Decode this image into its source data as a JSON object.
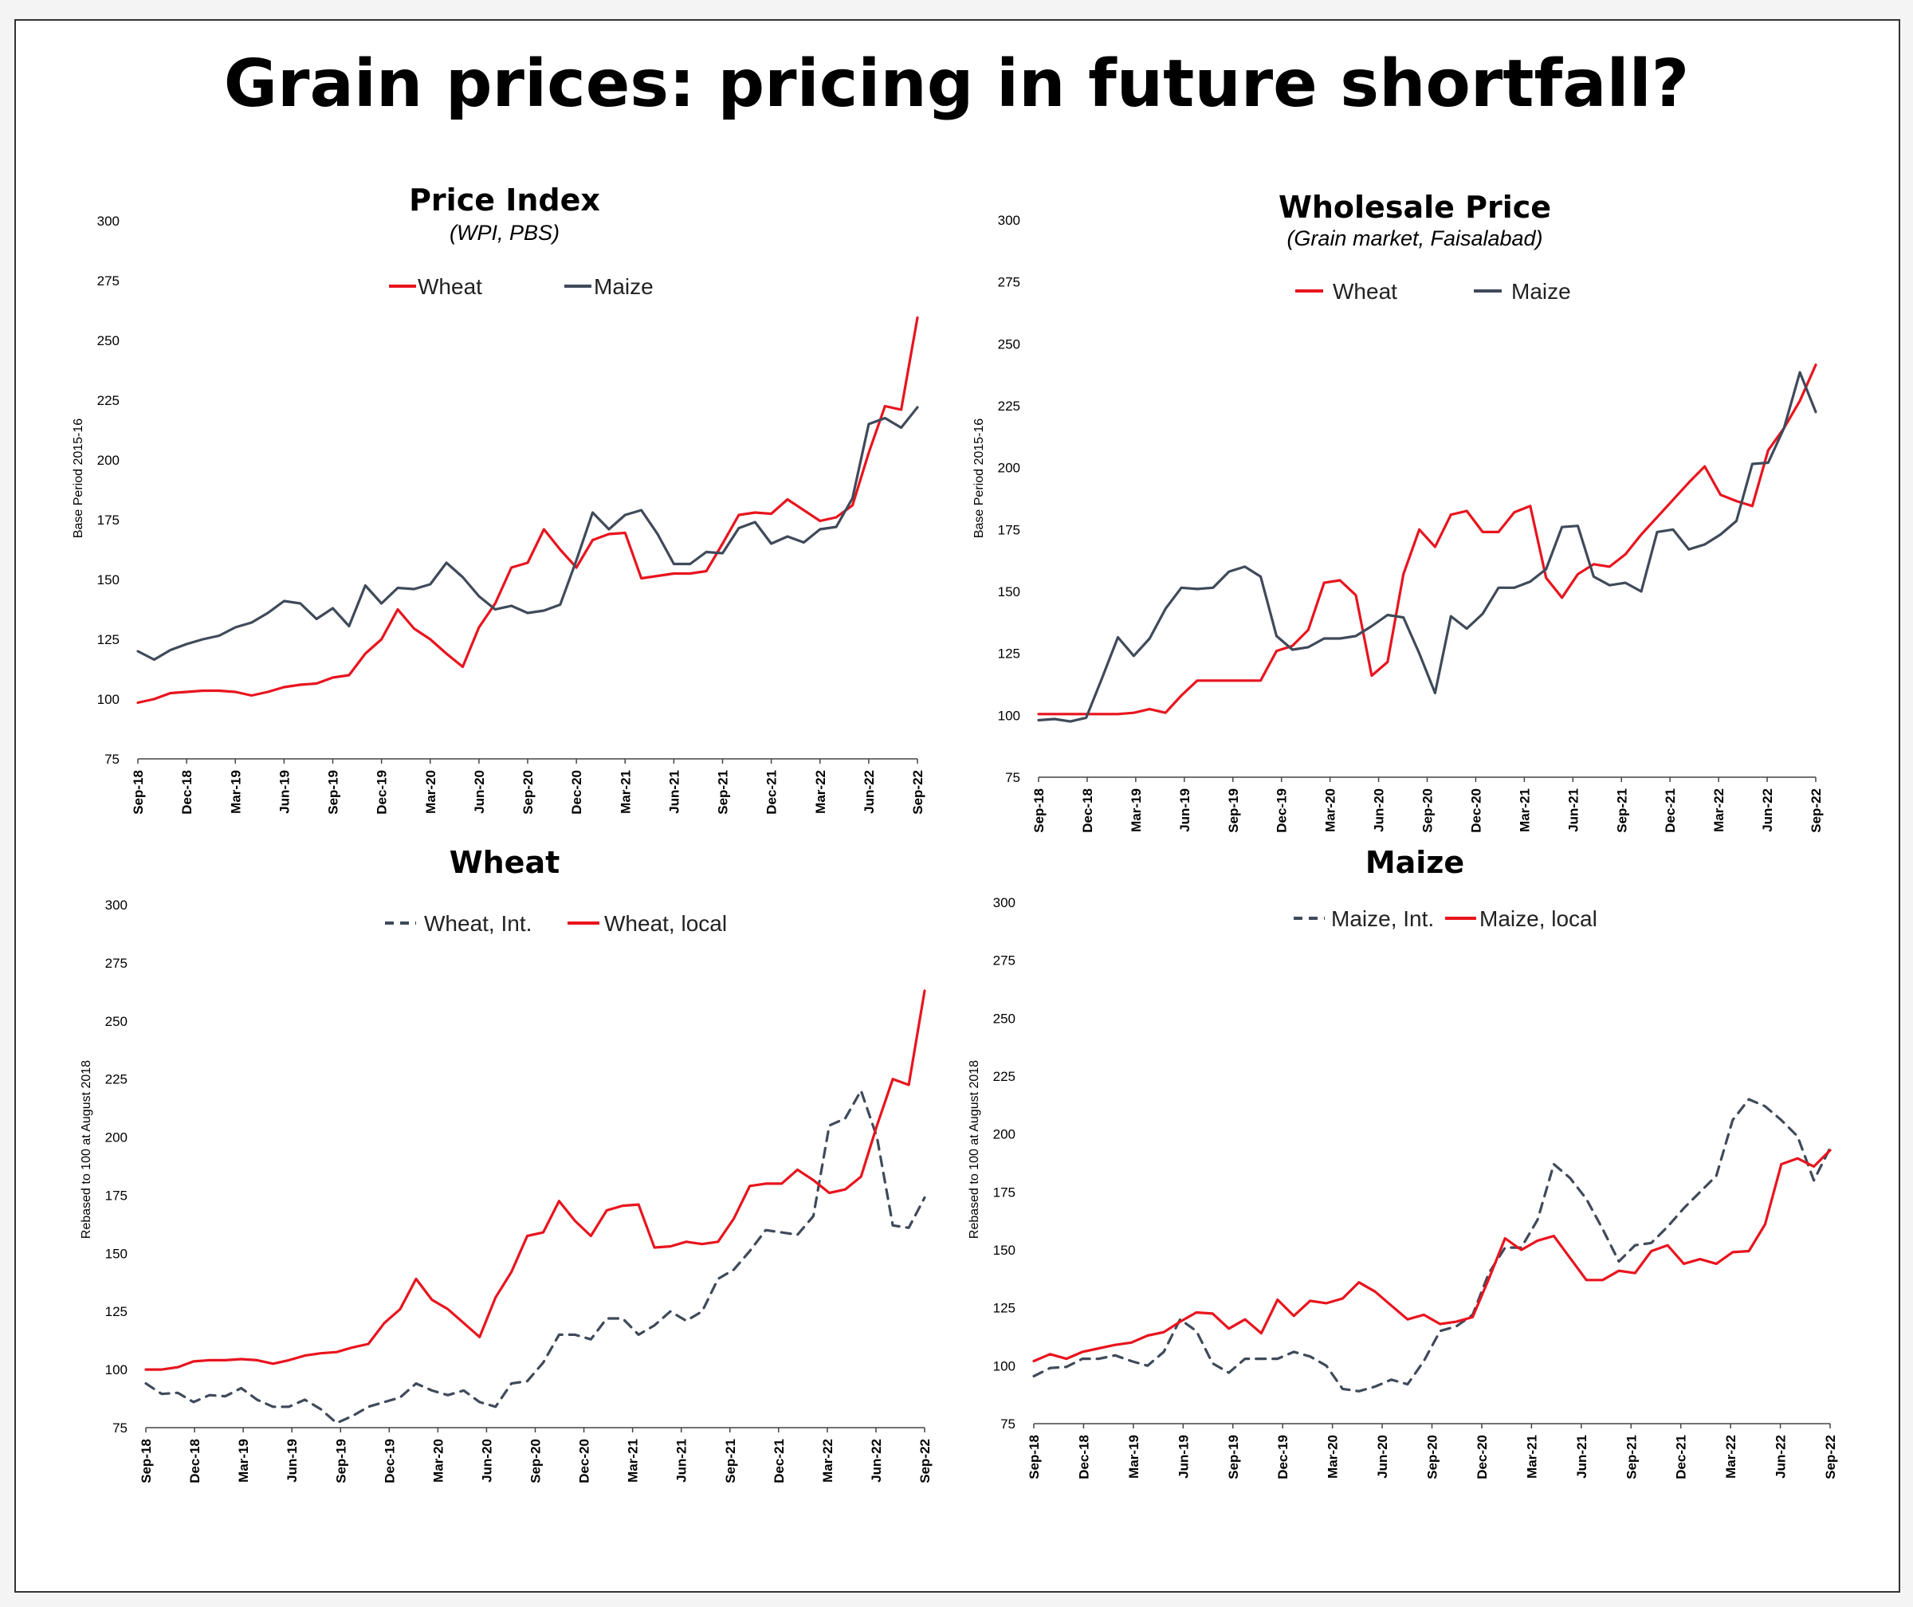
{
  "title": "Grain prices: pricing in future shortfall?",
  "colors": {
    "red": "#e8141e",
    "slate": "#3f4a5a"
  },
  "x_tick_labels": [
    "Sep-18",
    "Dec-18",
    "Mar-19",
    "Jun-19",
    "Sep-19",
    "Dec-19",
    "Mar-20",
    "Jun-20",
    "Sep-20",
    "Dec-20",
    "Mar-21",
    "Jun-21",
    "Sep-21",
    "Dec-21",
    "Mar-22",
    "Jun-22",
    "Sep-22"
  ],
  "chart_data": [
    {
      "id": "tl",
      "type": "line",
      "title": "Price Index",
      "subtitle": "(WPI, PBS)",
      "ylabel": "Base Period 2015-16",
      "ylim": [
        75,
        300
      ],
      "yticks": [
        75,
        100,
        125,
        150,
        175,
        200,
        225,
        250,
        275,
        300
      ],
      "series": [
        {
          "name": "Wheat",
          "color": "#e8141e",
          "dash": false,
          "values": [
            98.5,
            100,
            102.5,
            103,
            103.5,
            103.5,
            103,
            101.5,
            103,
            105,
            106,
            106.5,
            109,
            110,
            119,
            125,
            137.5,
            129.5,
            125,
            119,
            113.5,
            130,
            140,
            155,
            157,
            171,
            162.5,
            155,
            166.5,
            169,
            169.5,
            150.5,
            151.5,
            152.5,
            152.5,
            153.5,
            165,
            177,
            178,
            177.5,
            183.5,
            179,
            174.5,
            176,
            181,
            203,
            222.5,
            221,
            259.5
          ]
        },
        {
          "name": "Maize",
          "color": "#3f4a5a",
          "dash": false,
          "values": [
            120,
            116.5,
            120.5,
            123,
            125,
            126.5,
            130,
            132,
            136,
            141,
            140,
            133.5,
            138,
            130.5,
            147.5,
            140,
            146.5,
            146,
            148,
            157,
            151,
            143,
            137.5,
            139,
            136,
            137,
            139.5,
            158,
            178,
            171,
            177,
            179,
            169,
            156.5,
            156.5,
            161.5,
            161,
            171.5,
            174,
            165,
            168,
            165.5,
            171,
            172,
            184,
            215,
            217.5,
            213.5,
            222
          ]
        }
      ]
    },
    {
      "id": "tr",
      "type": "line",
      "title": "Wholesale Price",
      "subtitle": "(Grain market, Faisalabad)",
      "ylabel": "Base Period  2015-16",
      "ylim": [
        75,
        300
      ],
      "yticks": [
        75,
        100,
        125,
        150,
        175,
        200,
        225,
        250,
        275,
        300
      ],
      "series": [
        {
          "name": "Wheat",
          "color": "#e8141e",
          "dash": false,
          "values": [
            100.5,
            100.5,
            100.5,
            100.5,
            100.5,
            100.5,
            101,
            102.5,
            101,
            108,
            114,
            114,
            114,
            114,
            114,
            126,
            128,
            134.5,
            153.5,
            154.5,
            148.5,
            116,
            121.5,
            157,
            175,
            168,
            181,
            182.5,
            174,
            174,
            182,
            184.5,
            155.5,
            147.5,
            157,
            161,
            160,
            165,
            173,
            180,
            187,
            194,
            200.5,
            189,
            186.5,
            184.5,
            207,
            216,
            227,
            241.5
          ]
        },
        {
          "name": "Maize",
          "color": "#3f4a5a",
          "dash": false,
          "values": [
            98,
            98.5,
            97.5,
            99,
            115,
            131.5,
            124,
            131,
            143,
            151.5,
            151,
            151.5,
            158,
            160,
            156,
            132,
            126.5,
            127.5,
            131,
            131,
            132,
            136,
            140.5,
            139.5,
            125,
            109,
            140,
            135,
            141,
            151.5,
            151.5,
            154,
            159,
            176,
            176.5,
            156,
            152.5,
            153.5,
            150,
            174,
            175,
            167,
            169,
            173,
            178.5,
            201.5,
            202,
            216,
            238.5,
            222.5
          ]
        }
      ]
    },
    {
      "id": "bl",
      "type": "line",
      "title": "Wheat",
      "subtitle": "",
      "ylabel": "Rebased to 100 at August 2018",
      "ylim": [
        75,
        300
      ],
      "yticks": [
        75,
        100,
        125,
        150,
        175,
        200,
        225,
        250,
        275,
        300
      ],
      "series": [
        {
          "name": "Wheat, Int.",
          "color": "#3f4a5a",
          "dash": true,
          "values": [
            94,
            89.5,
            90,
            86,
            89,
            88.5,
            92,
            87,
            84,
            84,
            87,
            83,
            77,
            80,
            84,
            86,
            88,
            94,
            91,
            89,
            91,
            86,
            84,
            94,
            95,
            103,
            115,
            115,
            113,
            122,
            122,
            115,
            119,
            125,
            121,
            125,
            139,
            143,
            151,
            160,
            159,
            158,
            166,
            205,
            208,
            220,
            200,
            162,
            161,
            174
          ]
        },
        {
          "name": "Wheat, local",
          "color": "#e8141e",
          "dash": false,
          "values": [
            100,
            100,
            101,
            103.5,
            104,
            104,
            104.5,
            104,
            102.5,
            104,
            106,
            107,
            107.5,
            109.5,
            111,
            120,
            126,
            139,
            130,
            126,
            120,
            114,
            131,
            142,
            157.5,
            159,
            172.5,
            164,
            157.5,
            168.5,
            170.5,
            171,
            152.5,
            153,
            155,
            154,
            155,
            165,
            179,
            180,
            180,
            186,
            181.5,
            176,
            177.5,
            183,
            205,
            225,
            222.5,
            263
          ]
        }
      ]
    },
    {
      "id": "br",
      "type": "line",
      "title": "Maize",
      "subtitle": "",
      "ylabel": "Rebased to 100 at August 2018",
      "ylim": [
        75,
        300
      ],
      "yticks": [
        75,
        100,
        125,
        150,
        175,
        200,
        225,
        250,
        275,
        300
      ],
      "series": [
        {
          "name": "Maize, Int.",
          "color": "#3f4a5a",
          "dash": true,
          "values": [
            95.5,
            99,
            99.5,
            103,
            103,
            104.5,
            102,
            100,
            106,
            120,
            115,
            101,
            97,
            103,
            103,
            103,
            106,
            104,
            100,
            90,
            89,
            91,
            94,
            92,
            102,
            115,
            117,
            122,
            140,
            151,
            151,
            163,
            187,
            181,
            172,
            159,
            145,
            152,
            153,
            160,
            168,
            175,
            182,
            206,
            215,
            212,
            206,
            199,
            180,
            194
          ]
        },
        {
          "name": "Maize, local",
          "color": "#e8141e",
          "dash": false,
          "values": [
            102,
            105,
            103,
            106,
            107.5,
            109,
            110,
            113,
            114.5,
            119,
            123,
            122.5,
            116,
            120,
            114,
            128.5,
            121.5,
            128,
            127,
            129,
            136,
            132,
            126,
            120,
            122,
            118,
            119,
            121,
            137.5,
            155,
            150,
            154,
            156,
            146.5,
            137,
            137,
            141,
            140,
            149.5,
            152,
            144,
            146,
            144,
            149,
            149.5,
            161,
            187,
            189.5,
            186,
            193
          ]
        }
      ]
    }
  ]
}
